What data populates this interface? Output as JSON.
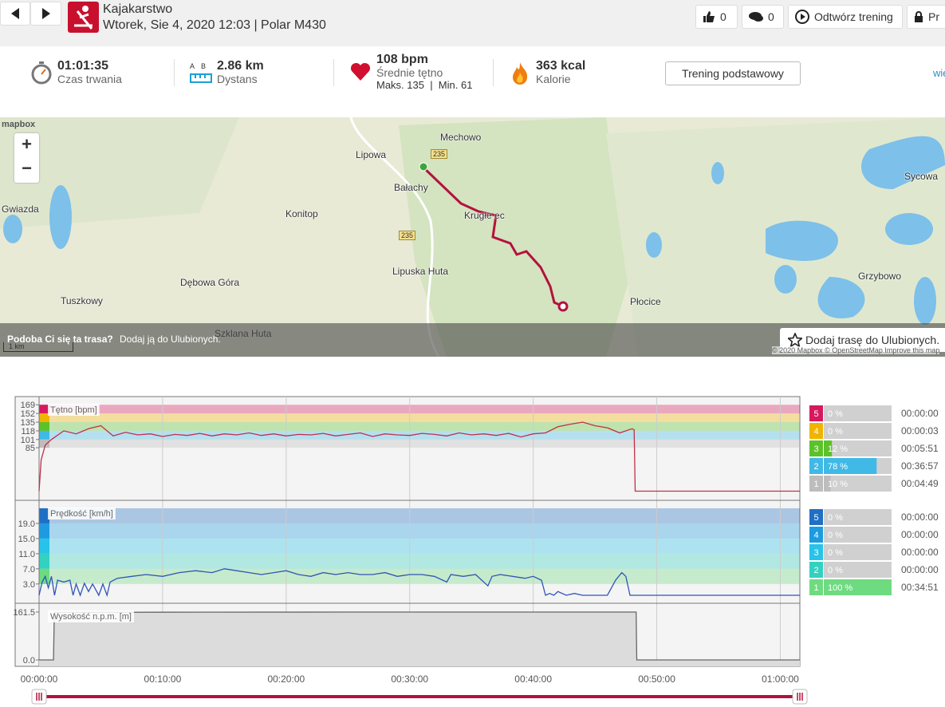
{
  "header": {
    "sport": "Kajakarstwo",
    "subtitle": "Wtorek, Sie 4, 2020 12:03 | Polar M430",
    "likes": 0,
    "comments": 0,
    "play": "Odtwórz trening",
    "privacy": "Pr"
  },
  "stats": [
    {
      "value": "01:01:35",
      "label": "Czas trwania"
    },
    {
      "value": "2.86 km",
      "label": "Dystans",
      "icon_text": [
        "A",
        "B"
      ]
    },
    {
      "value": "108 bpm",
      "label": "Średnie tętno",
      "extra": "Maks. 135  |  Min. 61"
    },
    {
      "value": "363 kcal",
      "label": "Kalorie"
    }
  ],
  "basic_training_button": "Trening podstawowy",
  "more_link": "wie",
  "map": {
    "logo": "mapbox",
    "zoom_in": "+",
    "zoom_out": "−",
    "scale": "1 km",
    "road_numbers": [
      "235",
      "235"
    ],
    "labels": [
      "Mechowo",
      "Lipowa",
      "Bałachy",
      "Gwiazda",
      "Konitop",
      "Krugłe ec",
      "Lipuska Huta",
      "Dębowa Góra",
      "Tuszkowy",
      "Szklana Huta",
      "Płocice",
      "Grzybowo",
      "Sycowa"
    ],
    "prompt": "Podoba Ci się ta trasa?",
    "prompt_action": "Dodaj ją do Ulubionych.",
    "favorite_button": "Dodaj trasę do Ulubionych.",
    "attribution": "© 2020 Mapbox © OpenStreetMap Improve this map"
  },
  "time_axis": {
    "xlim": [
      0,
      3695
    ],
    "xticks": [
      {
        "value": 0,
        "label": "00:00:00"
      },
      {
        "value": 600,
        "label": "00:10:00"
      },
      {
        "value": 1200,
        "label": "00:20:00"
      },
      {
        "value": 1800,
        "label": "00:30:00"
      },
      {
        "value": 2400,
        "label": "00:40:00"
      },
      {
        "value": 3000,
        "label": "00:50:00"
      },
      {
        "value": 3600,
        "label": "01:00:00"
      }
    ]
  },
  "charts": [
    {
      "type": "line",
      "title": "Tętno [bpm]",
      "color": "#c0304a",
      "ylim": [
        -18,
        185
      ],
      "yticks": [
        169,
        152,
        135,
        118,
        101,
        85
      ],
      "zone_colors": [
        "#d6195d",
        "#f0b400",
        "#5cc22a",
        "#40b9e6",
        "#bdbdbd"
      ],
      "x": [
        0,
        10,
        30,
        60,
        120,
        180,
        240,
        300,
        360,
        420,
        480,
        540,
        600,
        660,
        720,
        780,
        840,
        900,
        960,
        1020,
        1080,
        1140,
        1200,
        1260,
        1320,
        1380,
        1440,
        1500,
        1560,
        1620,
        1680,
        1740,
        1800,
        1860,
        1920,
        1980,
        2040,
        2100,
        2160,
        2220,
        2280,
        2340,
        2400,
        2460,
        2520,
        2580,
        2640,
        2700,
        2760,
        2820,
        2880,
        2890,
        2895,
        3695
      ],
      "values": [
        0,
        61,
        90,
        101,
        118,
        112,
        122,
        128,
        108,
        115,
        110,
        112,
        107,
        111,
        109,
        113,
        108,
        112,
        110,
        114,
        109,
        112,
        108,
        111,
        110,
        113,
        108,
        111,
        114,
        107,
        112,
        110,
        109,
        113,
        111,
        108,
        114,
        110,
        112,
        109,
        113,
        106,
        112,
        114,
        126,
        131,
        135,
        128,
        124,
        114,
        122,
        120,
        0,
        0
      ]
    },
    {
      "type": "line",
      "title": "Prędkość [km/h]",
      "color": "#2f55b8",
      "ylim": [
        -2.1,
        25.1
      ],
      "yticks": [
        {
          "value": 19,
          "label": "19.0"
        },
        {
          "value": 15,
          "label": "15.0"
        },
        {
          "value": 11,
          "label": "11.0"
        },
        {
          "value": 7,
          "label": "7.0"
        },
        {
          "value": 3,
          "label": "3.0"
        }
      ],
      "zone_colors": [
        "#1f6fc4",
        "#1e9be0",
        "#27c3e8",
        "#33d1c0",
        "#6edb80"
      ],
      "x": [
        0,
        15,
        30,
        45,
        60,
        75,
        90,
        120,
        150,
        165,
        180,
        200,
        220,
        240,
        260,
        290,
        310,
        330,
        345,
        380,
        450,
        520,
        600,
        680,
        760,
        840,
        900,
        960,
        1020,
        1080,
        1140,
        1200,
        1260,
        1320,
        1380,
        1440,
        1500,
        1560,
        1620,
        1680,
        1740,
        1800,
        1860,
        1920,
        1980,
        2000,
        2060,
        2120,
        2180,
        2200,
        2240,
        2300,
        2360,
        2400,
        2440,
        2460,
        2480,
        2500,
        2520,
        2560,
        2600,
        2640,
        2700,
        2760,
        2780,
        2800,
        2830,
        2850,
        2870,
        3695
      ],
      "values": [
        0,
        3.5,
        5,
        2,
        5,
        0,
        4,
        3.5,
        4,
        0,
        3,
        0,
        3.2,
        1,
        3,
        0,
        3,
        0,
        3.5,
        4.5,
        5,
        5.5,
        5,
        6,
        6.5,
        6,
        7,
        6.5,
        6,
        5.5,
        6,
        6.5,
        5.5,
        5,
        6,
        5.5,
        6,
        5.5,
        5.5,
        6,
        5,
        5.5,
        5.5,
        5,
        3.5,
        5.5,
        5,
        5.5,
        2.5,
        5,
        5.5,
        5,
        4.5,
        5,
        4,
        0,
        0.5,
        0,
        1,
        0,
        0.5,
        0,
        0,
        0,
        2,
        4,
        6,
        5,
        0,
        0
      ]
    },
    {
      "type": "area",
      "title": "Wysokość n.p.m. [m]",
      "color": "#666666",
      "ylim": [
        -21.5,
        191
      ],
      "yticks": [
        161.5,
        {
          "value": 0,
          "label": "0.0"
        }
      ],
      "x": [
        0,
        70,
        74,
        600,
        1500,
        2400,
        2900,
        2903,
        3695
      ],
      "values": [
        0,
        0,
        160,
        161,
        161.5,
        161.5,
        161.5,
        0,
        0
      ]
    }
  ],
  "zone_tables": [
    {
      "zones": [
        {
          "zone": 5,
          "percent": 0,
          "percent_label": "0 %",
          "time": "00:00:00",
          "color": "#d6195d"
        },
        {
          "zone": 4,
          "percent": 0,
          "percent_label": "0 %",
          "time": "00:00:03",
          "color": "#f0b400"
        },
        {
          "zone": 3,
          "percent": 12,
          "percent_label": "12 %",
          "time": "00:05:51",
          "color": "#5cc22a"
        },
        {
          "zone": 2,
          "percent": 78,
          "percent_label": "78 %",
          "time": "00:36:57",
          "color": "#40b9e6"
        },
        {
          "zone": 1,
          "percent": 10,
          "percent_label": "10 %",
          "time": "00:04:49",
          "color": "#bdbdbd"
        }
      ]
    },
    {
      "zones": [
        {
          "zone": 5,
          "percent": 0,
          "percent_label": "0 %",
          "time": "00:00:00",
          "color": "#1f6fc4"
        },
        {
          "zone": 4,
          "percent": 0,
          "percent_label": "0 %",
          "time": "00:00:00",
          "color": "#1e9be0"
        },
        {
          "zone": 3,
          "percent": 0,
          "percent_label": "0 %",
          "time": "00:00:00",
          "color": "#27c3e8"
        },
        {
          "zone": 2,
          "percent": 0,
          "percent_label": "0 %",
          "time": "00:00:00",
          "color": "#33d1c0"
        },
        {
          "zone": 1,
          "percent": 100,
          "percent_label": "100 %",
          "time": "00:34:51",
          "color": "#6edb80"
        }
      ]
    }
  ]
}
